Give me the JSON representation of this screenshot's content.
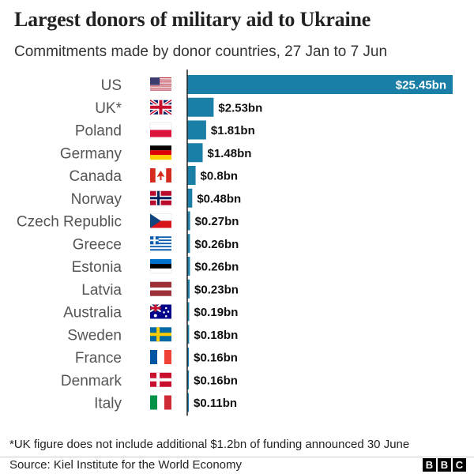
{
  "title": "Largest donors of military aid to Ukraine",
  "subtitle": "Commitments made by donor countries, 27 Jan to 7 Jun",
  "footnote": "*UK figure does not include additional $1.2bn of funding announced 30 June",
  "source": "Source: Kiel Institute for the World Economy",
  "brand": [
    "B",
    "B",
    "C"
  ],
  "colors": {
    "bar": "#1a7fa6",
    "axis": "#222222"
  },
  "chart_data": {
    "type": "bar",
    "orientation": "horizontal",
    "categories": [
      "US",
      "UK*",
      "Poland",
      "Germany",
      "Canada",
      "Norway",
      "Czech Republic",
      "Greece",
      "Estonia",
      "Latvia",
      "Australia",
      "Sweden",
      "France",
      "Denmark",
      "Italy"
    ],
    "flags": [
      "us-flag",
      "uk-flag",
      "poland-flag",
      "germany-flag",
      "canada-flag",
      "norway-flag",
      "czech-republic-flag",
      "greece-flag",
      "estonia-flag",
      "latvia-flag",
      "australia-flag",
      "sweden-flag",
      "france-flag",
      "denmark-flag",
      "italy-flag"
    ],
    "values": [
      25.45,
      2.53,
      1.81,
      1.48,
      0.8,
      0.48,
      0.27,
      0.26,
      0.26,
      0.23,
      0.19,
      0.18,
      0.16,
      0.16,
      0.11
    ],
    "value_labels": [
      "$25.45bn",
      "$2.53bn",
      "$1.81bn",
      "$1.48bn",
      "$0.8bn",
      "$0.48bn",
      "$0.27bn",
      "$0.26bn",
      "$0.26bn",
      "$0.23bn",
      "$0.19bn",
      "$0.18bn",
      "$0.16bn",
      "$0.16bn",
      "$0.11bn"
    ],
    "unit": "$bn",
    "xlim": [
      0,
      25.45
    ],
    "grid": false,
    "legend": "none"
  }
}
